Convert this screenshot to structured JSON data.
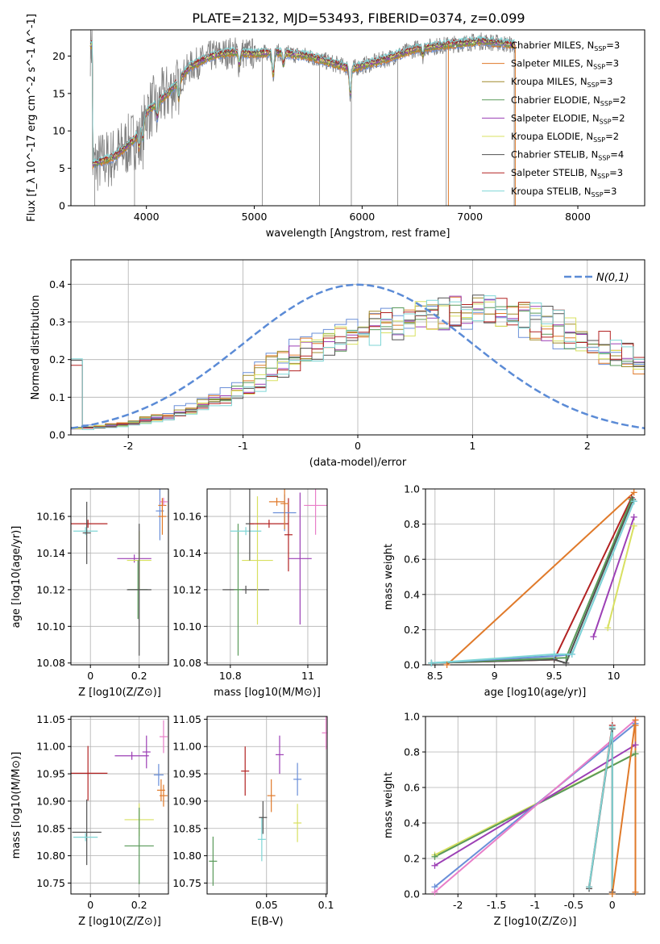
{
  "figure": {
    "title": "PLATE=2132, MJD=53493, FIBERID=0374, z=0.099"
  },
  "models": [
    {
      "name": "Chabrier MILES, N_SSP=3",
      "color": "#6a8fd8"
    },
    {
      "name": "Salpeter MILES, N_SSP=3",
      "color": "#e07a2a"
    },
    {
      "name": "Kroupa MILES, N_SSP=3",
      "color": "#a08c2c"
    },
    {
      "name": "Chabrier ELODIE, N_SSP=2",
      "color": "#5a9a5a"
    },
    {
      "name": "Salpeter ELODIE, N_SSP=2",
      "color": "#9c3fb5"
    },
    {
      "name": "Kroupa ELODIE, N_SSP=2",
      "color": "#d8e060"
    },
    {
      "name": "Chabrier STELIB, N_SSP=4",
      "color": "#505050"
    },
    {
      "name": "Salpeter STELIB, N_SSP=3",
      "color": "#b22222"
    },
    {
      "name": "Kroupa STELIB, N_SSP=3",
      "color": "#7fd6d6"
    }
  ],
  "extra_colors": {
    "pink": "#e87ec8",
    "data": "#808080",
    "normal": "#5b8bd6"
  },
  "chart_data": [
    {
      "type": "line",
      "id": "spectrum",
      "xlabel": "wavelength [Angstrom, rest frame]",
      "ylabel": "Flux [f_λ 10^-17 erg cm^-2 s^-1 A^-1]",
      "xlim": [
        3300,
        8620
      ],
      "ylim": [
        0,
        23.5
      ],
      "xticks": [
        4000,
        5000,
        6000,
        7000,
        8000
      ],
      "yticks": [
        0,
        5,
        10,
        15,
        20
      ],
      "legend": "top-right",
      "continuum": [
        [
          3500,
          5.5
        ],
        [
          3700,
          6.5
        ],
        [
          3900,
          9
        ],
        [
          4000,
          12.5
        ],
        [
          4200,
          15
        ],
        [
          4400,
          18.5
        ],
        [
          4600,
          20
        ],
        [
          4800,
          20.5
        ],
        [
          5000,
          20.3
        ],
        [
          5200,
          20.5
        ],
        [
          5500,
          20
        ],
        [
          5900,
          18.3
        ],
        [
          6200,
          19.5
        ],
        [
          6500,
          21
        ],
        [
          6800,
          21.5
        ],
        [
          7100,
          22
        ],
        [
          7400,
          21.5
        ]
      ],
      "absorption": [
        [
          3934,
          2.5
        ],
        [
          3968,
          2.5
        ],
        [
          4101,
          2.0
        ],
        [
          4300,
          2.5
        ],
        [
          4861,
          1.5
        ],
        [
          5175,
          3.0
        ],
        [
          5270,
          1.5
        ],
        [
          5890,
          3.5
        ],
        [
          6563,
          1.0
        ]
      ]
    },
    {
      "type": "line",
      "id": "residual-hist",
      "xlabel": "(data-model)/error",
      "ylabel": "Normed distribution",
      "xlim": [
        -2.5,
        2.5
      ],
      "ylim": [
        0,
        0.465
      ],
      "xticks": [
        -2,
        -1,
        0,
        1,
        2
      ],
      "yticks": [
        0.0,
        0.1,
        0.2,
        0.3,
        0.4
      ],
      "legend_label": "N(0,1)",
      "legend": "top-right",
      "hist_envelope": [
        [
          -2.5,
          0.015
        ],
        [
          -2,
          0.03
        ],
        [
          -1.5,
          0.06
        ],
        [
          -1,
          0.12
        ],
        [
          -0.5,
          0.22
        ],
        [
          0,
          0.27
        ],
        [
          0.5,
          0.31
        ],
        [
          1,
          0.33
        ],
        [
          1.5,
          0.31
        ],
        [
          2,
          0.25
        ],
        [
          2.5,
          0.19
        ]
      ]
    },
    {
      "type": "scatter",
      "id": "age-vs-Z",
      "xlabel": "Z [log10(Z/Z⊙)]",
      "ylabel": "age [log10(age/yr)]",
      "xlim": [
        -0.08,
        0.32
      ],
      "ylim": [
        10.079,
        10.175
      ],
      "xticks": [
        0.0,
        0.2
      ],
      "yticks": [
        10.08,
        10.1,
        10.12,
        10.14,
        10.16
      ],
      "points": [
        {
          "x": -0.01,
          "y": 10.156,
          "xerr": 0.08,
          "yerr": 0.0,
          "c": 7
        },
        {
          "x": -0.02,
          "y": 10.152,
          "xerr": 0.05,
          "yerr": 0.0,
          "c": 8
        },
        {
          "x": -0.015,
          "y": 10.151,
          "xerr": 0.0,
          "yerr": 0.017,
          "c": 6
        },
        {
          "x": 0.18,
          "y": 10.137,
          "xerr": 0.07,
          "yerr": 0.0,
          "c": 4
        },
        {
          "x": 0.2,
          "y": 10.136,
          "xerr": 0.05,
          "yerr": 0.016,
          "c": 5
        },
        {
          "x": 0.195,
          "y": 10.12,
          "xerr": 0.04,
          "yerr": 0.016,
          "c": 3
        },
        {
          "x": 0.2,
          "y": 10.12,
          "xerr": 0.05,
          "yerr": 0.036,
          "c": 6
        },
        {
          "x": 0.285,
          "y": 10.163,
          "xerr": 0.012,
          "yerr": 0.016,
          "c": 0
        },
        {
          "x": 0.295,
          "y": 10.166,
          "xerr": 0.0,
          "yerr": 0.004,
          "c": 1
        },
        {
          "x": 0.3,
          "y": 10.168,
          "xerr": 0.0,
          "yerr": 0.002,
          "c": 9
        },
        {
          "x": 0.295,
          "y": 10.16,
          "xerr": 0.005,
          "yerr": 0.01,
          "c": 1
        }
      ]
    },
    {
      "type": "scatter",
      "id": "age-vs-mass",
      "xlabel": "mass [log10(M/M⊙)]",
      "ylabel": "",
      "xlim": [
        10.74,
        11.05
      ],
      "ylim": [
        10.079,
        10.175
      ],
      "xticks": [
        10.8,
        11.0
      ],
      "yticks": [
        10.08,
        10.1,
        10.12,
        10.14,
        10.16
      ],
      "points": [
        {
          "x": 10.84,
          "y": 10.12,
          "xerr": 0.06,
          "yerr": 0.0,
          "c": 6
        },
        {
          "x": 10.82,
          "y": 10.12,
          "xerr": 0.0,
          "yerr": 0.036,
          "c": 3
        },
        {
          "x": 10.87,
          "y": 10.136,
          "xerr": 0.04,
          "yerr": 0.035,
          "c": 5
        },
        {
          "x": 10.84,
          "y": 10.152,
          "xerr": 0.04,
          "yerr": 0.0,
          "c": 8
        },
        {
          "x": 10.85,
          "y": 10.156,
          "xerr": 0.0,
          "yerr": 0.02,
          "c": 6
        },
        {
          "x": 10.9,
          "y": 10.156,
          "xerr": 0.05,
          "yerr": 0.0,
          "c": 7
        },
        {
          "x": 10.95,
          "y": 10.15,
          "xerr": 0.0,
          "yerr": 0.02,
          "c": 7
        },
        {
          "x": 10.98,
          "y": 10.137,
          "xerr": 0.03,
          "yerr": 0.036,
          "c": 4
        },
        {
          "x": 10.94,
          "y": 10.162,
          "xerr": 0.03,
          "yerr": 0.01,
          "c": 0
        },
        {
          "x": 10.92,
          "y": 10.168,
          "xerr": 0.02,
          "yerr": 0.0,
          "c": 1
        },
        {
          "x": 10.94,
          "y": 10.167,
          "xerr": 0.0,
          "yerr": 0.014,
          "c": 1
        },
        {
          "x": 11.02,
          "y": 10.166,
          "xerr": 0.03,
          "yerr": 0.016,
          "c": 9
        }
      ]
    },
    {
      "type": "line",
      "id": "weight-vs-age",
      "xlabel": "age  [log10(age/yr)]",
      "ylabel": "mass weight",
      "xlim": [
        8.42,
        10.26
      ],
      "ylim": [
        0,
        1.0
      ],
      "xticks": [
        8.5,
        9.0,
        9.5,
        10.0
      ],
      "yticks": [
        0.0,
        0.2,
        0.4,
        0.6,
        0.8,
        1.0
      ],
      "series": [
        {
          "c": 1,
          "points": [
            [
              8.6,
              0.0
            ],
            [
              10.17,
              0.98
            ]
          ]
        },
        {
          "c": 7,
          "points": [
            [
              8.47,
              0.01
            ],
            [
              9.5,
              0.03
            ],
            [
              10.15,
              0.95
            ]
          ]
        },
        {
          "c": 6,
          "points": [
            [
              8.47,
              0.01
            ],
            [
              9.5,
              0.03
            ],
            [
              9.6,
              0.01
            ],
            [
              10.16,
              0.94
            ]
          ]
        },
        {
          "c": 3,
          "points": [
            [
              8.47,
              0.01
            ],
            [
              9.6,
              0.04
            ],
            [
              10.15,
              0.94
            ]
          ]
        },
        {
          "c": 4,
          "points": [
            [
              9.83,
              0.16
            ],
            [
              10.17,
              0.84
            ]
          ]
        },
        {
          "c": 5,
          "points": [
            [
              9.95,
              0.21
            ],
            [
              10.17,
              0.79
            ]
          ]
        },
        {
          "c": 0,
          "points": [
            [
              8.47,
              0.01
            ],
            [
              9.5,
              0.05
            ],
            [
              9.65,
              0.06
            ],
            [
              10.17,
              0.93
            ]
          ]
        },
        {
          "c": 8,
          "points": [
            [
              8.47,
              0.01
            ],
            [
              9.5,
              0.06
            ],
            [
              9.65,
              0.06
            ],
            [
              10.17,
              0.93
            ]
          ]
        }
      ]
    },
    {
      "type": "scatter",
      "id": "mass-vs-Z",
      "xlabel": "Z [log10(Z/Z⊙)]",
      "ylabel": "mass [log10(M/M⊙)]",
      "xlim": [
        -0.08,
        0.32
      ],
      "ylim": [
        10.73,
        11.055
      ],
      "xticks": [
        0.0,
        0.2
      ],
      "yticks": [
        10.75,
        10.8,
        10.85,
        10.9,
        10.95,
        11.0,
        11.05
      ],
      "points": [
        {
          "x": -0.01,
          "y": 10.951,
          "xerr": 0.08,
          "yerr": 0.05,
          "c": 7
        },
        {
          "x": -0.015,
          "y": 10.843,
          "xerr": 0.06,
          "yerr": 0.06,
          "c": 6
        },
        {
          "x": -0.02,
          "y": 10.834,
          "xerr": 0.05,
          "yerr": 0.0,
          "c": 8
        },
        {
          "x": 0.17,
          "y": 10.983,
          "xerr": 0.07,
          "yerr": 0.0,
          "c": 4
        },
        {
          "x": 0.23,
          "y": 10.99,
          "xerr": 0.0,
          "yerr": 0.03,
          "c": 4
        },
        {
          "x": 0.2,
          "y": 10.866,
          "xerr": 0.06,
          "yerr": 0.03,
          "c": 5
        },
        {
          "x": 0.2,
          "y": 10.818,
          "xerr": 0.06,
          "yerr": 0.07,
          "c": 3
        },
        {
          "x": 0.28,
          "y": 10.948,
          "xerr": 0.02,
          "yerr": 0.02,
          "c": 0
        },
        {
          "x": 0.29,
          "y": 10.92,
          "xerr": 0.0,
          "yerr": 0.02,
          "c": 1
        },
        {
          "x": 0.3,
          "y": 10.91,
          "xerr": 0.0,
          "yerr": 0.02,
          "c": 1
        },
        {
          "x": 0.3,
          "y": 11.018,
          "xerr": 0.01,
          "yerr": 0.03,
          "c": 9
        }
      ]
    },
    {
      "type": "scatter",
      "id": "mass-vs-ebv",
      "xlabel": "E(B-V)",
      "ylabel": "",
      "xlim": [
        0.0,
        0.101
      ],
      "ylim": [
        10.73,
        11.055
      ],
      "xticks": [
        0.05,
        0.1
      ],
      "yticks": [
        10.75,
        10.8,
        10.85,
        10.9,
        10.95,
        11.0,
        11.05
      ],
      "points": [
        {
          "x": 0.005,
          "y": 10.79,
          "xerr": 0.0,
          "yerr": 0.045,
          "c": 3
        },
        {
          "x": 0.032,
          "y": 10.955,
          "xerr": 0.0,
          "yerr": 0.045,
          "c": 7
        },
        {
          "x": 0.046,
          "y": 10.83,
          "xerr": 0.0,
          "yerr": 0.04,
          "c": 8
        },
        {
          "x": 0.047,
          "y": 10.87,
          "xerr": 0.0,
          "yerr": 0.03,
          "c": 6
        },
        {
          "x": 0.054,
          "y": 10.91,
          "xerr": 0.0,
          "yerr": 0.03,
          "c": 1
        },
        {
          "x": 0.061,
          "y": 10.985,
          "xerr": 0.0,
          "yerr": 0.035,
          "c": 4
        },
        {
          "x": 0.076,
          "y": 10.94,
          "xerr": 0.0,
          "yerr": 0.03,
          "c": 0
        },
        {
          "x": 0.076,
          "y": 10.86,
          "xerr": 0.0,
          "yerr": 0.035,
          "c": 5
        },
        {
          "x": 0.1,
          "y": 11.025,
          "xerr": 0.0,
          "yerr": 0.03,
          "c": 9
        }
      ]
    },
    {
      "type": "line",
      "id": "weight-vs-Z",
      "xlabel": "Z [log10(Z/Z⊙)]",
      "ylabel": "mass weight",
      "xlim": [
        -2.42,
        0.42
      ],
      "ylim": [
        0,
        1.0
      ],
      "xticks": [
        -2.0,
        -1.5,
        -1.0,
        -0.5,
        0.0
      ],
      "yticks": [
        0.0,
        0.2,
        0.4,
        0.6,
        0.8,
        1.0
      ],
      "series": [
        {
          "c": 5,
          "points": [
            [
              -2.3,
              0.22
            ],
            [
              0.3,
              0.79
            ]
          ]
        },
        {
          "c": 3,
          "points": [
            [
              -2.3,
              0.21
            ],
            [
              0.3,
              0.79
            ]
          ]
        },
        {
          "c": 4,
          "points": [
            [
              -2.3,
              0.16
            ],
            [
              0.3,
              0.84
            ]
          ]
        },
        {
          "c": 0,
          "points": [
            [
              -2.3,
              0.04
            ],
            [
              0.3,
              0.96
            ]
          ]
        },
        {
          "c": 9,
          "points": [
            [
              -2.3,
              0.01
            ],
            [
              0.3,
              0.98
            ]
          ]
        },
        {
          "c": 7,
          "points": [
            [
              -0.3,
              0.04
            ],
            [
              0.0,
              0.95
            ],
            [
              0.0,
              0.01
            ]
          ]
        },
        {
          "c": 6,
          "points": [
            [
              -0.3,
              0.03
            ],
            [
              0.0,
              0.93
            ],
            [
              0.0,
              0.01
            ]
          ]
        },
        {
          "c": 8,
          "points": [
            [
              -0.3,
              0.04
            ],
            [
              0.0,
              0.94
            ],
            [
              0.0,
              0.0
            ]
          ]
        },
        {
          "c": 1,
          "points": [
            [
              0.0,
              0.0
            ],
            [
              0.3,
              0.98
            ],
            [
              0.3,
              0.01
            ]
          ]
        },
        {
          "c": 1,
          "points": [
            [
              0.3,
              0.01
            ],
            [
              0.3,
              0.95
            ]
          ]
        }
      ]
    }
  ]
}
